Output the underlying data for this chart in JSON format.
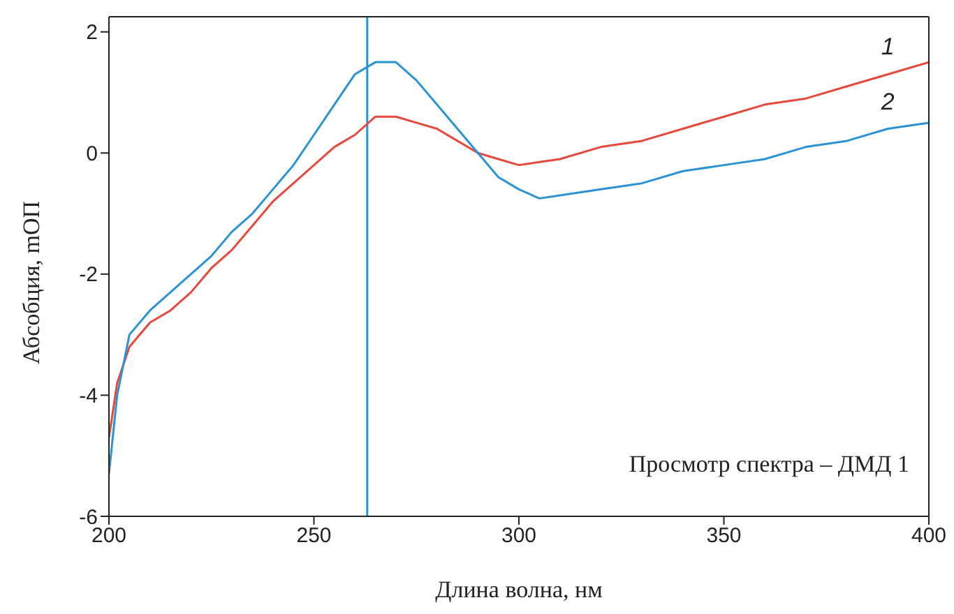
{
  "chart_data": {
    "type": "line",
    "xlabel": "Длина волна, нм",
    "ylabel": "Абсобция, mОП",
    "x": [
      200,
      202,
      205,
      210,
      215,
      220,
      225,
      230,
      235,
      240,
      245,
      250,
      255,
      260,
      265,
      270,
      275,
      280,
      285,
      290,
      295,
      300,
      305,
      310,
      320,
      330,
      340,
      350,
      360,
      370,
      380,
      390,
      400
    ],
    "series": [
      {
        "name": "1",
        "color": "#e8483c",
        "values": [
          -4.7,
          -3.8,
          -3.2,
          -2.8,
          -2.6,
          -2.3,
          -1.9,
          -1.6,
          -1.2,
          -0.8,
          -0.5,
          -0.2,
          0.1,
          0.3,
          0.6,
          0.6,
          0.5,
          0.4,
          0.2,
          0.0,
          -0.1,
          -0.2,
          -0.15,
          -0.1,
          0.1,
          0.2,
          0.4,
          0.6,
          0.8,
          0.9,
          1.1,
          1.3,
          1.5
        ]
      },
      {
        "name": "2",
        "color": "#2a93d5",
        "values": [
          -5.3,
          -4.0,
          -3.0,
          -2.6,
          -2.3,
          -2.0,
          -1.7,
          -1.3,
          -1.0,
          -0.6,
          -0.2,
          0.3,
          0.8,
          1.3,
          1.5,
          1.5,
          1.2,
          0.8,
          0.4,
          0.0,
          -0.4,
          -0.6,
          -0.75,
          -0.7,
          -0.6,
          -0.5,
          -0.3,
          -0.2,
          -0.1,
          0.1,
          0.2,
          0.4,
          0.5
        ]
      }
    ],
    "xlim": [
      200,
      400
    ],
    "xticks": [
      200,
      250,
      300,
      350,
      400
    ],
    "ylim": [
      -6,
      2.25
    ],
    "yticks": [
      2,
      0,
      -2,
      -4,
      -6
    ],
    "ref_lines": [
      {
        "axis": "x",
        "value": 263,
        "color": "#2a93d5"
      }
    ],
    "annotations": [
      "Просмотр спектра – ДМД 1"
    ],
    "grid": false,
    "legend": false,
    "marker": "none",
    "line_style": "solid"
  }
}
